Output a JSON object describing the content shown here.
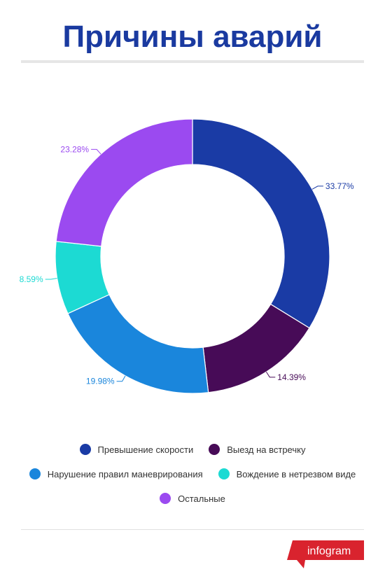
{
  "title": "Причины аварий",
  "chart_data": {
    "type": "pie",
    "style": "donut",
    "title": "Причины аварий",
    "categories": [
      "Превышение скорости",
      "Выезд на встречку",
      "Нарушение правил маневрирования",
      "Вождение в нетрезвом виде",
      "Остальные"
    ],
    "values": [
      33.77,
      14.39,
      19.98,
      8.59,
      23.28
    ],
    "labels": [
      "33.77%",
      "14.39%",
      "19.98%",
      "8.59%",
      "23.28%"
    ],
    "colors": [
      "#1a3ba5",
      "#470b57",
      "#1a86dc",
      "#1cdad3",
      "#9b4af0"
    ],
    "legend_placement": "bottom"
  },
  "brand": {
    "name": "infogram",
    "color": "#d9232e"
  }
}
